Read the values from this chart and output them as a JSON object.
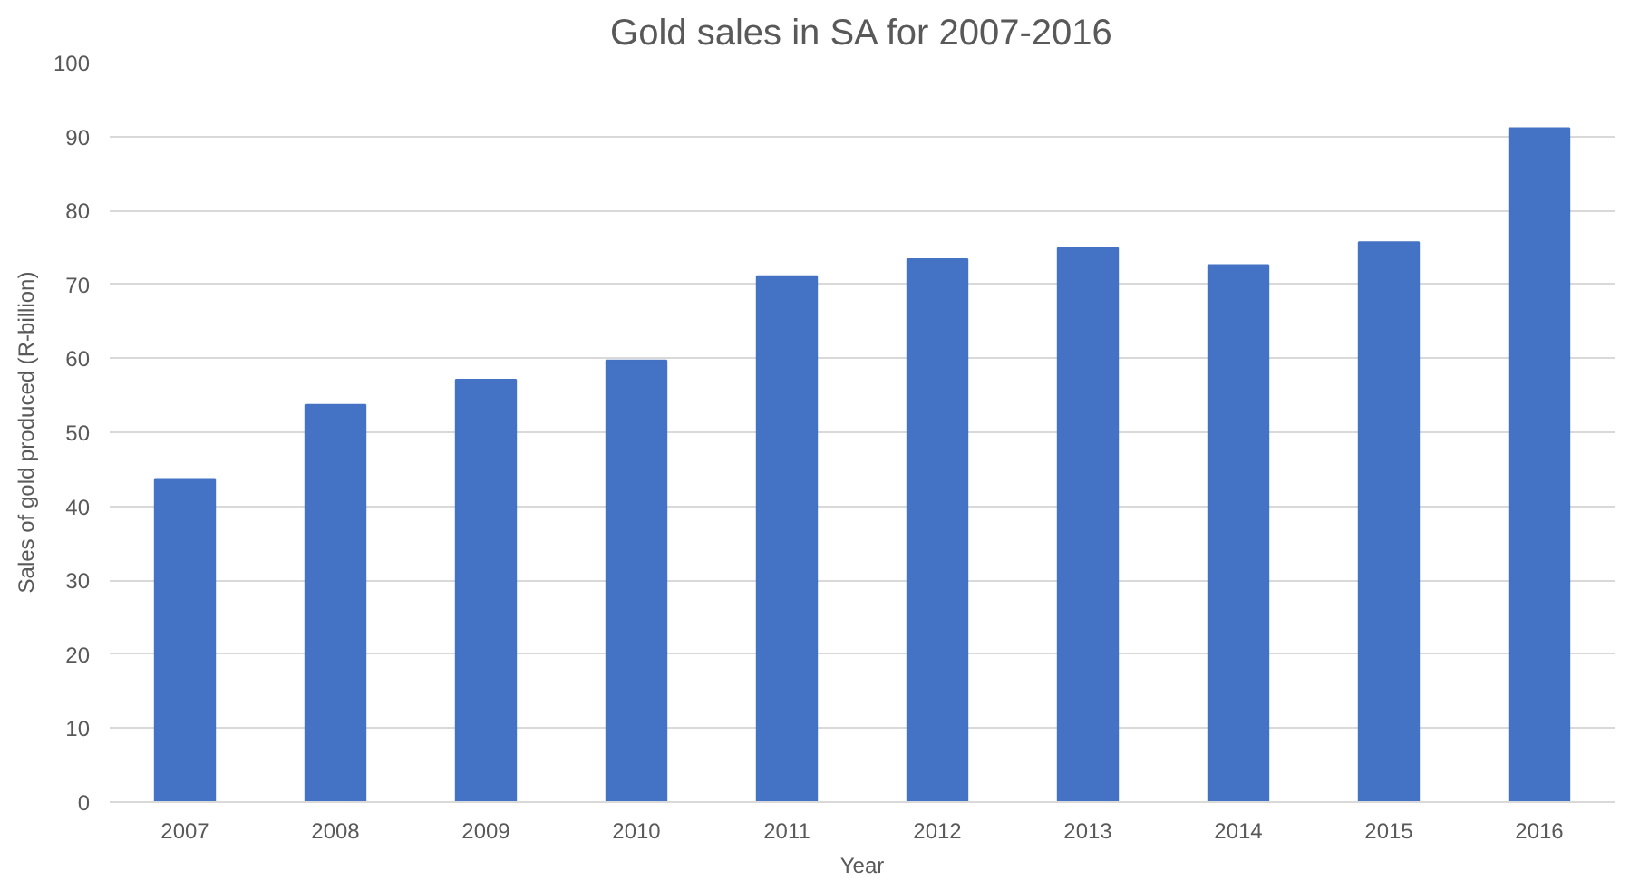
{
  "chart_data": {
    "type": "bar",
    "title": "Gold sales in SA for 2007-2016",
    "xlabel": "Year",
    "ylabel": "Sales of gold produced (R-billion)",
    "categories": [
      "2007",
      "2008",
      "2009",
      "2010",
      "2011",
      "2012",
      "2013",
      "2014",
      "2015",
      "2016"
    ],
    "values": [
      43.7,
      53.7,
      57.1,
      59.7,
      71.1,
      73.4,
      74.9,
      72.6,
      75.7,
      91.1
    ],
    "color": "#4472c4",
    "ylim": [
      0,
      100
    ],
    "yticks": [
      0,
      10,
      20,
      30,
      40,
      50,
      60,
      70,
      80,
      90,
      100
    ],
    "grid": "y"
  }
}
